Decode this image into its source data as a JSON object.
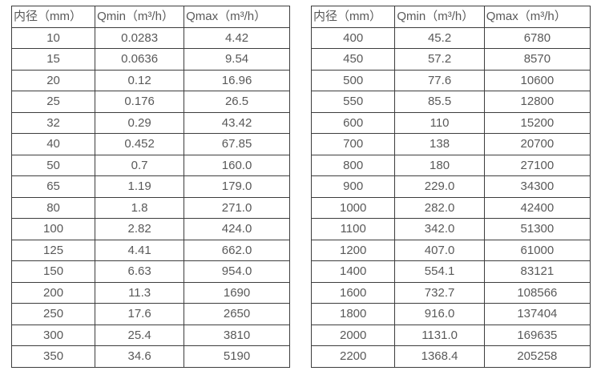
{
  "tables": [
    {
      "name": "small-diameter-flow-specs",
      "headers": [
        "内径（mm）",
        "Qmin（m³/h）",
        "Qmax（m³/h）"
      ],
      "rows": [
        [
          "10",
          "0.0283",
          "4.42"
        ],
        [
          "15",
          "0.0636",
          "9.54"
        ],
        [
          "20",
          "0.12",
          "16.96"
        ],
        [
          "25",
          "0.176",
          "26.5"
        ],
        [
          "32",
          "0.29",
          "43.42"
        ],
        [
          "40",
          "0.452",
          "67.85"
        ],
        [
          "50",
          "0.7",
          "160.0"
        ],
        [
          "65",
          "1.19",
          "179.0"
        ],
        [
          "80",
          "1.8",
          "271.0"
        ],
        [
          "100",
          "2.82",
          "424.0"
        ],
        [
          "125",
          "4.41",
          "662.0"
        ],
        [
          "150",
          "6.63",
          "954.0"
        ],
        [
          "200",
          "11.3",
          "1690"
        ],
        [
          "250",
          "17.6",
          "2650"
        ],
        [
          "300",
          "25.4",
          "3810"
        ],
        [
          "350",
          "34.6",
          "5190"
        ]
      ]
    },
    {
      "name": "large-diameter-flow-specs",
      "headers": [
        "内径（mm）",
        "Qmin（m³/h）",
        "Qmax（m³/h）"
      ],
      "rows": [
        [
          "400",
          "45.2",
          "6780"
        ],
        [
          "450",
          "57.2",
          "8570"
        ],
        [
          "500",
          "77.6",
          "10600"
        ],
        [
          "550",
          "85.5",
          "12800"
        ],
        [
          "600",
          "110",
          "15200"
        ],
        [
          "700",
          "138",
          "20700"
        ],
        [
          "800",
          "180",
          "27100"
        ],
        [
          "900",
          "229.0",
          "34300"
        ],
        [
          "1000",
          "282.0",
          "42400"
        ],
        [
          "1100",
          "342.0",
          "51300"
        ],
        [
          "1200",
          "407.0",
          "61000"
        ],
        [
          "1400",
          "554.1",
          "83121"
        ],
        [
          "1600",
          "732.7",
          "108566"
        ],
        [
          "1800",
          "916.0",
          "137404"
        ],
        [
          "2000",
          "1131.0",
          "169635"
        ],
        [
          "2200",
          "1368.4",
          "205258"
        ]
      ]
    }
  ],
  "colors": {
    "border": "#3d3d3d",
    "text": "#595959",
    "background": "#ffffff"
  }
}
